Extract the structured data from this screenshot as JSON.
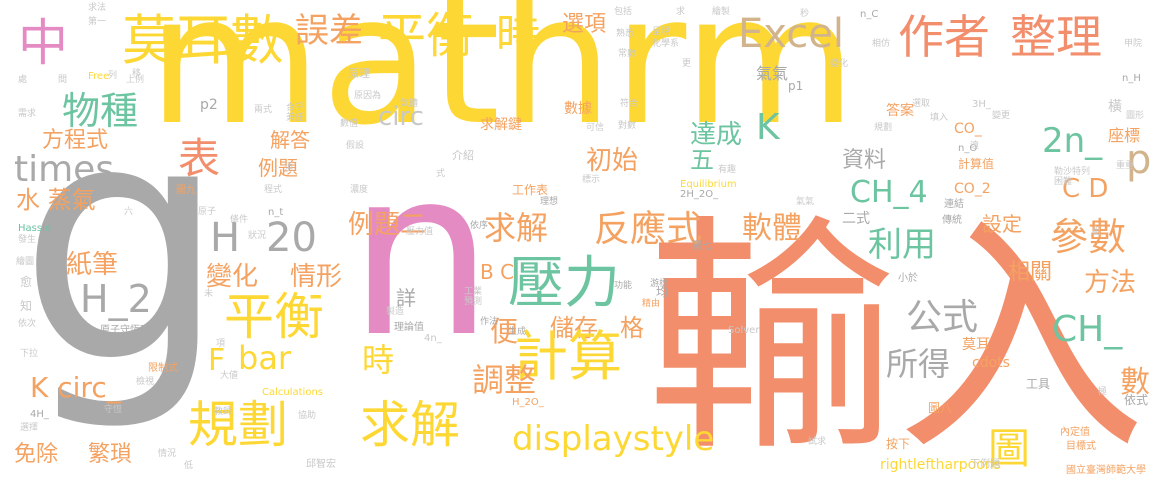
{
  "palette": {
    "yellow": "#fdd835",
    "orange": "#f4a261",
    "salmon": "#f28e6b",
    "green": "#6cc4a0",
    "pink": "#e58bc4",
    "gray": "#a9a9a9",
    "tan": "#d2b48c",
    "light_gray": "#c8c8c8"
  },
  "words": [
    {
      "text": "mathrm"
    },
    {
      "text": "g"
    },
    {
      "text": "n"
    },
    {
      "text": "輸入"
    },
    {
      "text": "莫耳數"
    },
    {
      "text": "誤差"
    },
    {
      "text": "平衡"
    },
    {
      "text": "時"
    },
    {
      "text": "中"
    },
    {
      "text": "選項"
    },
    {
      "text": "Excel"
    },
    {
      "text": "作者"
    },
    {
      "text": "整理"
    },
    {
      "text": "物種"
    },
    {
      "text": "times"
    },
    {
      "text": "表"
    },
    {
      "text": "方程式"
    },
    {
      "text": "解答"
    },
    {
      "text": "例題"
    },
    {
      "text": "初始"
    },
    {
      "text": "達成"
    },
    {
      "text": "K"
    },
    {
      "text": "2n_"
    },
    {
      "text": "p"
    },
    {
      "text": "CH_4"
    },
    {
      "text": "資料"
    },
    {
      "text": "C D"
    },
    {
      "text": "五"
    },
    {
      "text": "H"
    },
    {
      "text": "20"
    },
    {
      "text": "水 蒸氣"
    },
    {
      "text": "例題二"
    },
    {
      "text": "求解"
    },
    {
      "text": "反應式"
    },
    {
      "text": "軟體"
    },
    {
      "text": "參數"
    },
    {
      "text": "利用"
    },
    {
      "text": "設定"
    },
    {
      "text": "H_2"
    },
    {
      "text": "紙筆"
    },
    {
      "text": "變化"
    },
    {
      "text": "情形"
    },
    {
      "text": "壓力"
    },
    {
      "text": "B C"
    },
    {
      "text": "相關"
    },
    {
      "text": "方法"
    },
    {
      "text": "平衡"
    },
    {
      "text": "公式"
    },
    {
      "text": "CH_"
    },
    {
      "text": "bar"
    },
    {
      "text": "F"
    },
    {
      "text": "時"
    },
    {
      "text": "便"
    },
    {
      "text": "儲存"
    },
    {
      "text": "格"
    },
    {
      "text": "計算"
    },
    {
      "text": "所得"
    },
    {
      "text": "調整"
    },
    {
      "text": "數"
    },
    {
      "text": "K circ_"
    },
    {
      "text": "規劃"
    },
    {
      "text": "求解"
    },
    {
      "text": "displaystyle"
    },
    {
      "text": "圖"
    },
    {
      "text": "免除"
    },
    {
      "text": "繁瑣"
    },
    {
      "text": "rightleftharpoons"
    },
    {
      "text": "circ"
    },
    {
      "text": "詳"
    },
    {
      "text": "求解鍵"
    },
    {
      "text": "數據"
    },
    {
      "text": "氣氣"
    },
    {
      "text": "工作表"
    },
    {
      "text": "cdots"
    },
    {
      "text": "莫耳"
    },
    {
      "text": "CO_"
    },
    {
      "text": "CO_2"
    },
    {
      "text": "計算值"
    },
    {
      "text": "座標"
    },
    {
      "text": "答案"
    },
    {
      "text": "國立臺灣師範大學"
    },
    {
      "text": "內定值"
    },
    {
      "text": "目標式"
    },
    {
      "text": "依式"
    },
    {
      "text": "圖八"
    },
    {
      "text": "工具"
    },
    {
      "text": "按下"
    },
    {
      "text": "下例題"
    },
    {
      "text": "理論值"
    },
    {
      "text": "原子守恆可"
    },
    {
      "text": "限制式"
    },
    {
      "text": "邱智宏"
    },
    {
      "text": "Calculations"
    },
    {
      "text": "Equilibrium"
    },
    {
      "text": "Solver"
    },
    {
      "text": "Hassle"
    },
    {
      "text": "Free"
    },
    {
      "text": "圖九"
    },
    {
      "text": "圖七"
    },
    {
      "text": "二式"
    },
    {
      "text": "傳統"
    },
    {
      "text": "連結"
    },
    {
      "text": "小於"
    },
    {
      "text": "精由"
    },
    {
      "text": "功能"
    },
    {
      "text": "游標"
    },
    {
      "text": "均"
    },
    {
      "text": "作法"
    },
    {
      "text": "生成"
    },
    {
      "text": "理想"
    },
    {
      "text": "依序"
    },
    {
      "text": "n_t"
    },
    {
      "text": "n_O"
    },
    {
      "text": "n_H"
    },
    {
      "text": "n_C"
    },
    {
      "text": "3H_"
    },
    {
      "text": "4n_"
    },
    {
      "text": "4H_"
    },
    {
      "text": "2H_2O_"
    },
    {
      "text": "H_2O_"
    },
    {
      "text": "p1"
    },
    {
      "text": "p2"
    },
    {
      "text": "求法"
    },
    {
      "text": "上例"
    },
    {
      "text": "原理"
    },
    {
      "text": "合乎"
    },
    {
      "text": "兼任"
    },
    {
      "text": "原因為"
    },
    {
      "text": "數值"
    },
    {
      "text": "假設"
    },
    {
      "text": "濃度"
    },
    {
      "text": "原子"
    },
    {
      "text": "條件"
    },
    {
      "text": "狀況"
    },
    {
      "text": "壓力值"
    },
    {
      "text": "製造"
    },
    {
      "text": "預測"
    },
    {
      "text": "工業"
    },
    {
      "text": "教師"
    },
    {
      "text": "協助"
    },
    {
      "text": "檢視"
    },
    {
      "text": "守恆"
    },
    {
      "text": "選擇"
    },
    {
      "text": "情況"
    },
    {
      "text": "下拉"
    },
    {
      "text": "依次"
    },
    {
      "text": "發生"
    },
    {
      "text": "繪圖"
    },
    {
      "text": "熟悉"
    },
    {
      "text": "常數"
    },
    {
      "text": "化學系"
    },
    {
      "text": "呈現"
    },
    {
      "text": "包括"
    },
    {
      "text": "繪製"
    },
    {
      "text": "相仿"
    },
    {
      "text": "變化"
    },
    {
      "text": "規劃"
    },
    {
      "text": "變更"
    },
    {
      "text": "勒沙特列"
    },
    {
      "text": "困難"
    },
    {
      "text": "重重"
    },
    {
      "text": "甲院"
    },
    {
      "text": "圖形"
    },
    {
      "text": "選取"
    },
    {
      "text": "填入"
    },
    {
      "text": "有趣"
    },
    {
      "text": "遠"
    },
    {
      "text": "標示"
    },
    {
      "text": "可信"
    },
    {
      "text": "對數"
    },
    {
      "text": "介紹"
    },
    {
      "text": "符合"
    },
    {
      "text": "試求"
    },
    {
      "text": "大値"
    },
    {
      "text": "需求"
    },
    {
      "text": "組"
    },
    {
      "text": "極"
    },
    {
      "text": "低"
    },
    {
      "text": "知"
    },
    {
      "text": "愈"
    },
    {
      "text": "未"
    },
    {
      "text": "項"
    },
    {
      "text": "列"
    },
    {
      "text": "第一"
    },
    {
      "text": "程式"
    },
    {
      "text": "兩式"
    },
    {
      "text": "氣體"
    },
    {
      "text": "秒"
    },
    {
      "text": "求"
    },
    {
      "text": "更"
    },
    {
      "text": "移"
    },
    {
      "text": "間"
    },
    {
      "text": "處"
    },
    {
      "text": "六"
    },
    {
      "text": "式"
    },
    {
      "text": "須"
    },
    {
      "text": "橫"
    },
    {
      "text": "氣氣"
    }
  ]
}
